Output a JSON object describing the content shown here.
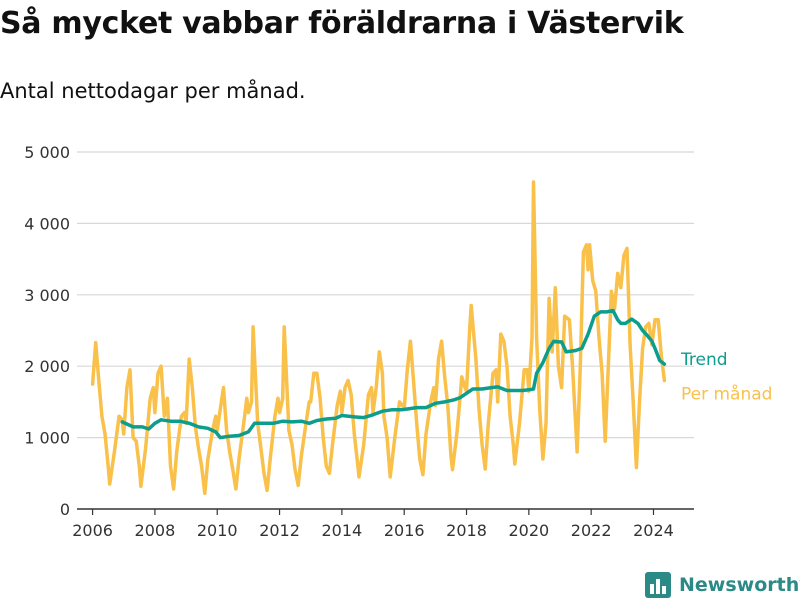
{
  "title": "Så mycket vabbar föräldrarna i Västervik",
  "subtitle": "Antal nettodagar per månad.",
  "brand": {
    "name": "Newsworthy",
    "icon": "bar-chart-logo-icon"
  },
  "colors": {
    "monthly": "#f9c04a",
    "trend": "#0c9d8d",
    "grid": "#d8d8d8",
    "axis": "#333333",
    "brand": "#2c8a86"
  },
  "chart_data": {
    "type": "line",
    "title": "Så mycket vabbar föräldrarna i Västervik",
    "subtitle": "Antal nettodagar per månad.",
    "xlabel": "",
    "ylabel": "",
    "xlim": [
      2005.5,
      2025.3
    ],
    "ylim": [
      0,
      5000
    ],
    "grid": true,
    "legend": "inline-right-end",
    "x_ticks": [
      {
        "value": 2006,
        "label": "2006"
      },
      {
        "value": 2008,
        "label": "2008"
      },
      {
        "value": 2010,
        "label": "2010"
      },
      {
        "value": 2012,
        "label": "2012"
      },
      {
        "value": 2014,
        "label": "2014"
      },
      {
        "value": 2016,
        "label": "2016"
      },
      {
        "value": 2018,
        "label": "2018"
      },
      {
        "value": 2020,
        "label": "2020"
      },
      {
        "value": 2022,
        "label": "2022"
      },
      {
        "value": 2024,
        "label": "2024"
      }
    ],
    "y_ticks": [
      {
        "value": 0,
        "label": "0"
      },
      {
        "value": 1000,
        "label": "1 000"
      },
      {
        "value": 2000,
        "label": "2 000"
      },
      {
        "value": 3000,
        "label": "3 000"
      },
      {
        "value": 4000,
        "label": "4 000"
      },
      {
        "value": 5000,
        "label": "5 000"
      }
    ],
    "series": [
      {
        "name": "Per månad",
        "color": "#f9c04a",
        "points": [
          [
            2006.0,
            1750
          ],
          [
            2006.1,
            2330
          ],
          [
            2006.2,
            1800
          ],
          [
            2006.3,
            1300
          ],
          [
            2006.4,
            1050
          ],
          [
            2006.5,
            600
          ],
          [
            2006.55,
            350
          ],
          [
            2006.7,
            800
          ],
          [
            2006.85,
            1300
          ],
          [
            2006.95,
            1250
          ],
          [
            2007.0,
            1050
          ],
          [
            2007.1,
            1700
          ],
          [
            2007.2,
            1950
          ],
          [
            2007.3,
            1000
          ],
          [
            2007.4,
            950
          ],
          [
            2007.5,
            600
          ],
          [
            2007.55,
            320
          ],
          [
            2007.7,
            850
          ],
          [
            2007.85,
            1550
          ],
          [
            2007.95,
            1700
          ],
          [
            2008.0,
            1350
          ],
          [
            2008.1,
            1900
          ],
          [
            2008.2,
            2000
          ],
          [
            2008.3,
            1300
          ],
          [
            2008.4,
            1550
          ],
          [
            2008.5,
            600
          ],
          [
            2008.6,
            280
          ],
          [
            2008.7,
            800
          ],
          [
            2008.85,
            1300
          ],
          [
            2008.95,
            1350
          ],
          [
            2009.0,
            1200
          ],
          [
            2009.1,
            2100
          ],
          [
            2009.2,
            1700
          ],
          [
            2009.3,
            1150
          ],
          [
            2009.4,
            850
          ],
          [
            2009.5,
            600
          ],
          [
            2009.6,
            220
          ],
          [
            2009.7,
            700
          ],
          [
            2009.85,
            1100
          ],
          [
            2009.95,
            1300
          ],
          [
            2010.0,
            1100
          ],
          [
            2010.1,
            1400
          ],
          [
            2010.2,
            1700
          ],
          [
            2010.3,
            1100
          ],
          [
            2010.4,
            800
          ],
          [
            2010.5,
            550
          ],
          [
            2010.6,
            280
          ],
          [
            2010.7,
            700
          ],
          [
            2010.85,
            1200
          ],
          [
            2010.95,
            1550
          ],
          [
            2011.0,
            1350
          ],
          [
            2011.1,
            1500
          ],
          [
            2011.15,
            2550
          ],
          [
            2011.3,
            1200
          ],
          [
            2011.4,
            850
          ],
          [
            2011.5,
            500
          ],
          [
            2011.6,
            260
          ],
          [
            2011.7,
            700
          ],
          [
            2011.85,
            1300
          ],
          [
            2011.95,
            1550
          ],
          [
            2012.0,
            1350
          ],
          [
            2012.1,
            1550
          ],
          [
            2012.15,
            2550
          ],
          [
            2012.3,
            1100
          ],
          [
            2012.4,
            900
          ],
          [
            2012.5,
            550
          ],
          [
            2012.6,
            330
          ],
          [
            2012.7,
            750
          ],
          [
            2012.85,
            1200
          ],
          [
            2012.95,
            1500
          ],
          [
            2013.0,
            1500
          ],
          [
            2013.1,
            1900
          ],
          [
            2013.2,
            1900
          ],
          [
            2013.3,
            1550
          ],
          [
            2013.4,
            1000
          ],
          [
            2013.5,
            600
          ],
          [
            2013.6,
            500
          ],
          [
            2013.7,
            900
          ],
          [
            2013.85,
            1450
          ],
          [
            2013.95,
            1650
          ],
          [
            2014.0,
            1350
          ],
          [
            2014.1,
            1700
          ],
          [
            2014.2,
            1800
          ],
          [
            2014.3,
            1600
          ],
          [
            2014.4,
            1050
          ],
          [
            2014.5,
            650
          ],
          [
            2014.55,
            450
          ],
          [
            2014.7,
            900
          ],
          [
            2014.85,
            1600
          ],
          [
            2014.95,
            1700
          ],
          [
            2015.0,
            1350
          ],
          [
            2015.1,
            1700
          ],
          [
            2015.2,
            2200
          ],
          [
            2015.3,
            1900
          ],
          [
            2015.35,
            1300
          ],
          [
            2015.45,
            1000
          ],
          [
            2015.55,
            450
          ],
          [
            2015.7,
            1000
          ],
          [
            2015.85,
            1500
          ],
          [
            2015.95,
            1450
          ],
          [
            2016.0,
            1400
          ],
          [
            2016.1,
            1950
          ],
          [
            2016.2,
            2350
          ],
          [
            2016.3,
            1800
          ],
          [
            2016.4,
            1200
          ],
          [
            2016.5,
            700
          ],
          [
            2016.6,
            480
          ],
          [
            2016.7,
            1050
          ],
          [
            2016.85,
            1500
          ],
          [
            2016.95,
            1700
          ],
          [
            2017.0,
            1450
          ],
          [
            2017.1,
            2100
          ],
          [
            2017.2,
            2350
          ],
          [
            2017.3,
            1850
          ],
          [
            2017.4,
            1450
          ],
          [
            2017.5,
            750
          ],
          [
            2017.55,
            550
          ],
          [
            2017.7,
            1100
          ],
          [
            2017.85,
            1850
          ],
          [
            2017.95,
            1700
          ],
          [
            2018.0,
            1650
          ],
          [
            2018.1,
            2500
          ],
          [
            2018.15,
            2850
          ],
          [
            2018.3,
            2100
          ],
          [
            2018.4,
            1400
          ],
          [
            2018.5,
            900
          ],
          [
            2018.6,
            560
          ],
          [
            2018.7,
            1200
          ],
          [
            2018.85,
            1900
          ],
          [
            2018.95,
            1950
          ],
          [
            2019.0,
            1500
          ],
          [
            2019.1,
            2450
          ],
          [
            2019.2,
            2350
          ],
          [
            2019.3,
            2000
          ],
          [
            2019.4,
            1300
          ],
          [
            2019.5,
            900
          ],
          [
            2019.55,
            630
          ],
          [
            2019.7,
            1200
          ],
          [
            2019.85,
            1950
          ],
          [
            2019.95,
            1950
          ],
          [
            2020.0,
            1650
          ],
          [
            2020.1,
            2400
          ],
          [
            2020.15,
            4580
          ],
          [
            2020.25,
            2400
          ],
          [
            2020.35,
            1400
          ],
          [
            2020.45,
            700
          ],
          [
            2020.55,
            1200
          ],
          [
            2020.65,
            2950
          ],
          [
            2020.75,
            2200
          ],
          [
            2020.85,
            3100
          ],
          [
            2020.95,
            2000
          ],
          [
            2021.05,
            1700
          ],
          [
            2021.15,
            2700
          ],
          [
            2021.3,
            2650
          ],
          [
            2021.4,
            2000
          ],
          [
            2021.5,
            1200
          ],
          [
            2021.55,
            800
          ],
          [
            2021.65,
            2000
          ],
          [
            2021.75,
            3600
          ],
          [
            2021.85,
            3700
          ],
          [
            2021.9,
            3350
          ],
          [
            2021.95,
            3700
          ],
          [
            2022.05,
            3200
          ],
          [
            2022.15,
            3050
          ],
          [
            2022.25,
            2400
          ],
          [
            2022.35,
            1900
          ],
          [
            2022.45,
            950
          ],
          [
            2022.55,
            2000
          ],
          [
            2022.65,
            3050
          ],
          [
            2022.75,
            2800
          ],
          [
            2022.85,
            3300
          ],
          [
            2022.95,
            3100
          ],
          [
            2023.05,
            3550
          ],
          [
            2023.15,
            3650
          ],
          [
            2023.25,
            2300
          ],
          [
            2023.35,
            1500
          ],
          [
            2023.45,
            580
          ],
          [
            2023.55,
            1500
          ],
          [
            2023.65,
            2250
          ],
          [
            2023.75,
            2550
          ],
          [
            2023.85,
            2600
          ],
          [
            2023.95,
            2300
          ],
          [
            2024.05,
            2650
          ],
          [
            2024.15,
            2650
          ],
          [
            2024.25,
            2150
          ],
          [
            2024.35,
            1800
          ]
        ]
      },
      {
        "name": "Trend",
        "color": "#0c9d8d",
        "points": [
          [
            2006.95,
            1220
          ],
          [
            2007.3,
            1150
          ],
          [
            2007.6,
            1150
          ],
          [
            2007.8,
            1120
          ],
          [
            2008.0,
            1200
          ],
          [
            2008.2,
            1250
          ],
          [
            2008.5,
            1230
          ],
          [
            2008.8,
            1230
          ],
          [
            2009.1,
            1200
          ],
          [
            2009.4,
            1150
          ],
          [
            2009.7,
            1130
          ],
          [
            2009.95,
            1080
          ],
          [
            2010.1,
            1000
          ],
          [
            2010.4,
            1020
          ],
          [
            2010.7,
            1030
          ],
          [
            2011.0,
            1080
          ],
          [
            2011.2,
            1200
          ],
          [
            2011.5,
            1200
          ],
          [
            2011.8,
            1200
          ],
          [
            2012.1,
            1230
          ],
          [
            2012.4,
            1220
          ],
          [
            2012.7,
            1230
          ],
          [
            2012.95,
            1200
          ],
          [
            2013.2,
            1240
          ],
          [
            2013.5,
            1260
          ],
          [
            2013.8,
            1270
          ],
          [
            2014.0,
            1310
          ],
          [
            2014.4,
            1290
          ],
          [
            2014.7,
            1280
          ],
          [
            2015.0,
            1320
          ],
          [
            2015.3,
            1370
          ],
          [
            2015.6,
            1390
          ],
          [
            2015.9,
            1390
          ],
          [
            2016.1,
            1400
          ],
          [
            2016.4,
            1420
          ],
          [
            2016.7,
            1420
          ],
          [
            2017.0,
            1480
          ],
          [
            2017.3,
            1500
          ],
          [
            2017.6,
            1530
          ],
          [
            2017.8,
            1560
          ],
          [
            2018.0,
            1620
          ],
          [
            2018.2,
            1680
          ],
          [
            2018.5,
            1680
          ],
          [
            2018.8,
            1700
          ],
          [
            2019.0,
            1710
          ],
          [
            2019.3,
            1660
          ],
          [
            2019.6,
            1660
          ],
          [
            2019.8,
            1660
          ],
          [
            2020.0,
            1670
          ],
          [
            2020.15,
            1680
          ],
          [
            2020.25,
            1900
          ],
          [
            2020.45,
            2050
          ],
          [
            2020.65,
            2250
          ],
          [
            2020.8,
            2350
          ],
          [
            2020.95,
            2340
          ],
          [
            2021.05,
            2340
          ],
          [
            2021.2,
            2200
          ],
          [
            2021.5,
            2220
          ],
          [
            2021.7,
            2250
          ],
          [
            2021.9,
            2450
          ],
          [
            2022.1,
            2700
          ],
          [
            2022.3,
            2760
          ],
          [
            2022.5,
            2760
          ],
          [
            2022.7,
            2780
          ],
          [
            2022.85,
            2650
          ],
          [
            2022.95,
            2600
          ],
          [
            2023.1,
            2600
          ],
          [
            2023.3,
            2660
          ],
          [
            2023.5,
            2600
          ],
          [
            2023.65,
            2500
          ],
          [
            2023.8,
            2430
          ],
          [
            2023.95,
            2350
          ],
          [
            2024.05,
            2250
          ],
          [
            2024.2,
            2080
          ],
          [
            2024.35,
            2030
          ]
        ]
      }
    ]
  }
}
